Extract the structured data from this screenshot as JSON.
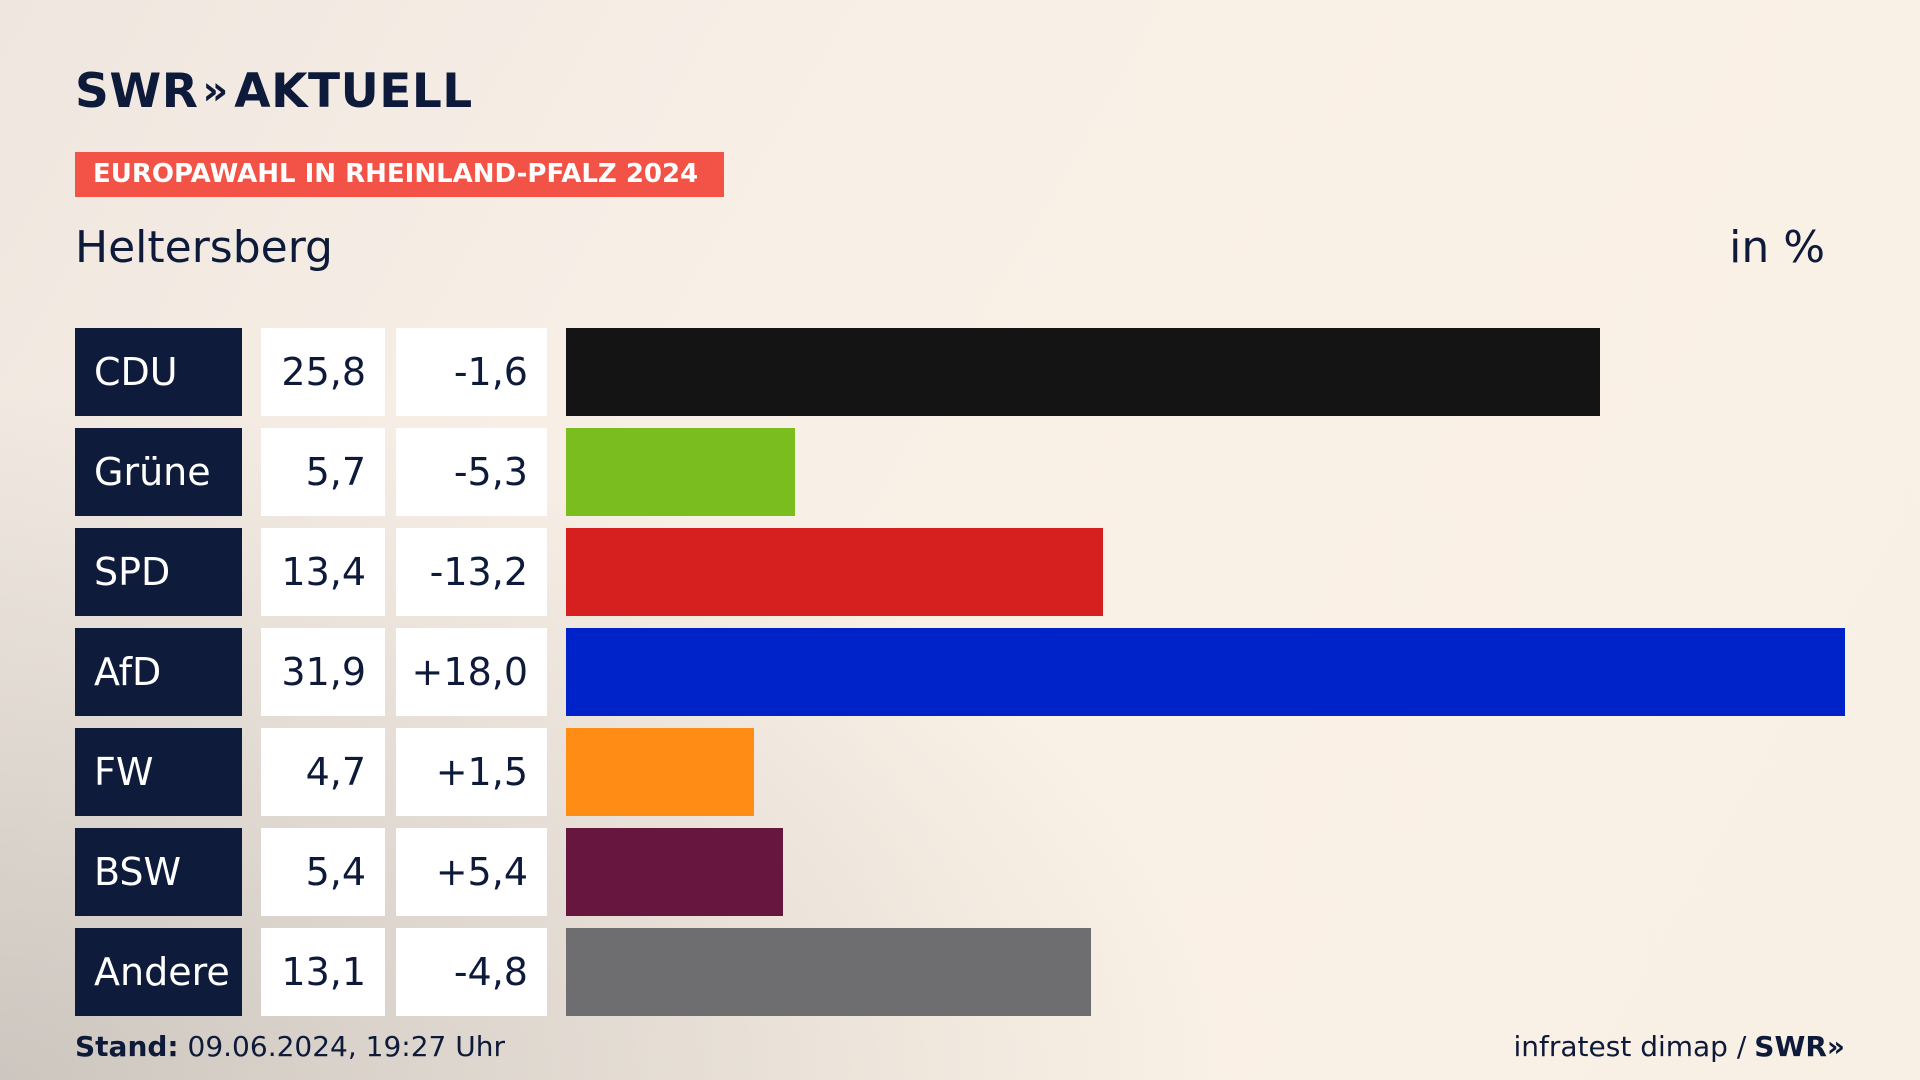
{
  "brand": {
    "name": "SWR",
    "arrows": "»",
    "product": "AKTUELL"
  },
  "tag_label": "EUROPAWAHL IN RHEINLAND-PFALZ 2024",
  "region": "Heltersberg",
  "unit": "in %",
  "footer": {
    "stand_label": "Stand:",
    "stand_value": "09.06.2024, 19:27 Uhr",
    "source": "infratest dimap /",
    "source_brand": "SWR»"
  },
  "chart_data": {
    "type": "bar",
    "orientation": "horizontal",
    "categories": [
      "CDU",
      "Grüne",
      "SPD",
      "AfD",
      "FW",
      "BSW",
      "Andere"
    ],
    "values": [
      25.8,
      5.7,
      13.4,
      31.9,
      4.7,
      5.4,
      13.1
    ],
    "value_labels": [
      "25,8",
      "5,7",
      "13,4",
      "31,9",
      "4,7",
      "5,4",
      "13,1"
    ],
    "changes": [
      "-1,6",
      "-5,3",
      "-13,2",
      "+18,0",
      "+1,5",
      "+5,4",
      "-4,8"
    ],
    "colors": [
      "#141414",
      "#79bd1f",
      "#d61f1f",
      "#0022c9",
      "#ff8c14",
      "#67173f",
      "#6e6e70"
    ],
    "xlim": [
      0,
      31.9
    ]
  }
}
